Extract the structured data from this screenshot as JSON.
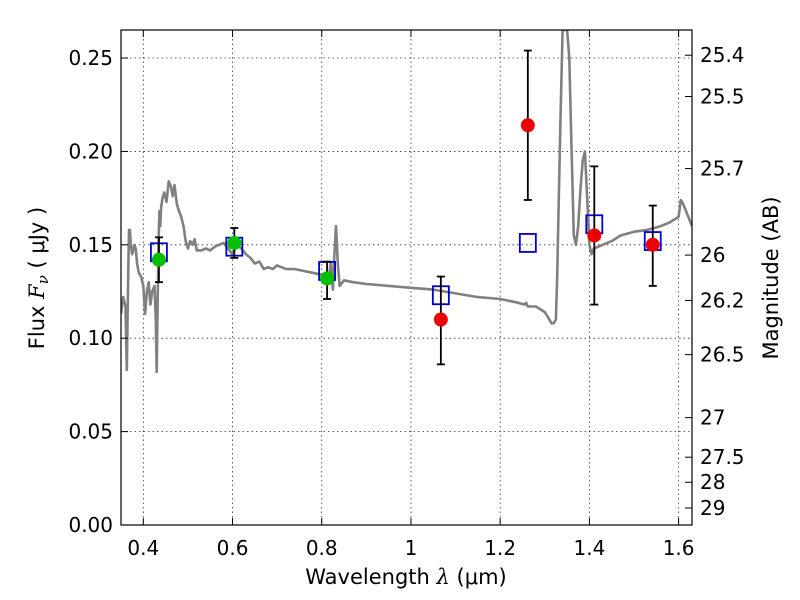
{
  "chart_data": {
    "type": "scatter",
    "title": "",
    "xlabel": "Wavelength",
    "xlabel_symbol": "λ",
    "xlabel_unit": "(μm)",
    "ylabel": "Flux",
    "ylabel_symbol": "F",
    "ylabel_subscript": "ν",
    "ylabel_unit": "( μJy )",
    "y2label": "Magnitude (AB)",
    "xlim": [
      0.35,
      1.63
    ],
    "ylim": [
      0,
      0.265
    ],
    "grid": true,
    "x_ticks": [
      0.4,
      0.6,
      0.8,
      1.0,
      1.2,
      1.4,
      1.6
    ],
    "x_tick_labels": [
      "0.4",
      "0.6",
      "0.8",
      "1",
      "1.2",
      "1.4",
      "1.6"
    ],
    "y_ticks": [
      0,
      0.05,
      0.1,
      0.15,
      0.2,
      0.25
    ],
    "y_tick_labels": [
      "0.00",
      "0.05",
      "0.10",
      "0.15",
      "0.20",
      "0.25"
    ],
    "y2_ticks": [
      {
        "label": "25.4",
        "flux": 0.2515
      },
      {
        "label": "25.5",
        "flux": 0.2294
      },
      {
        "label": "25.7",
        "flux": 0.1908
      },
      {
        "label": "26",
        "flux": 0.1445
      },
      {
        "label": "26.2",
        "flux": 0.1202
      },
      {
        "label": "26.5",
        "flux": 0.0912
      },
      {
        "label": "27",
        "flux": 0.0575
      },
      {
        "label": "27.5",
        "flux": 0.0363
      },
      {
        "label": "28",
        "flux": 0.0229
      },
      {
        "label": "29",
        "flux": 0.0091
      }
    ],
    "model_spectrum": {
      "color": "#808080",
      "x": [
        0.35,
        0.355,
        0.36,
        0.363,
        0.366,
        0.368,
        0.37,
        0.372,
        0.375,
        0.378,
        0.38,
        0.383,
        0.386,
        0.39,
        0.395,
        0.4,
        0.404,
        0.408,
        0.412,
        0.416,
        0.42,
        0.425,
        0.428,
        0.43,
        0.432,
        0.434,
        0.436,
        0.438,
        0.44,
        0.443,
        0.447,
        0.452,
        0.457,
        0.462,
        0.466,
        0.47,
        0.475,
        0.48,
        0.485,
        0.49,
        0.495,
        0.5,
        0.505,
        0.51,
        0.515,
        0.52,
        0.53,
        0.54,
        0.55,
        0.56,
        0.57,
        0.58,
        0.59,
        0.6,
        0.61,
        0.62,
        0.63,
        0.64,
        0.65,
        0.66,
        0.67,
        0.68,
        0.69,
        0.7,
        0.72,
        0.74,
        0.76,
        0.78,
        0.8,
        0.81,
        0.815,
        0.82,
        0.825,
        0.828,
        0.832,
        0.836,
        0.84,
        0.85,
        0.87,
        0.9,
        0.95,
        1.0,
        1.05,
        1.1,
        1.15,
        1.2,
        1.24,
        1.255,
        1.258,
        1.262,
        1.268,
        1.28,
        1.3,
        1.31,
        1.315,
        1.32,
        1.325,
        1.328,
        1.33,
        1.335,
        1.34,
        1.345,
        1.35,
        1.355,
        1.36,
        1.365,
        1.37,
        1.375,
        1.38,
        1.385,
        1.39,
        1.395,
        1.4,
        1.405,
        1.41,
        1.43,
        1.45,
        1.47,
        1.5,
        1.53,
        1.56,
        1.58,
        1.6,
        1.605,
        1.61,
        1.62,
        1.63
      ],
      "y": [
        0.113,
        0.122,
        0.117,
        0.083,
        0.13,
        0.158,
        0.158,
        0.15,
        0.145,
        0.148,
        0.15,
        0.148,
        0.14,
        0.135,
        0.133,
        0.128,
        0.113,
        0.125,
        0.13,
        0.118,
        0.125,
        0.128,
        0.11,
        0.082,
        0.118,
        0.15,
        0.168,
        0.16,
        0.17,
        0.175,
        0.178,
        0.173,
        0.184,
        0.181,
        0.176,
        0.182,
        0.172,
        0.168,
        0.165,
        0.16,
        0.152,
        0.148,
        0.152,
        0.15,
        0.153,
        0.147,
        0.147,
        0.148,
        0.147,
        0.149,
        0.15,
        0.151,
        0.148,
        0.145,
        0.15,
        0.148,
        0.145,
        0.143,
        0.14,
        0.141,
        0.137,
        0.138,
        0.137,
        0.139,
        0.137,
        0.137,
        0.136,
        0.135,
        0.134,
        0.132,
        0.13,
        0.14,
        0.126,
        0.143,
        0.16,
        0.14,
        0.128,
        0.131,
        0.13,
        0.129,
        0.128,
        0.127,
        0.126,
        0.124,
        0.122,
        0.121,
        0.119,
        0.118,
        0.119,
        0.117,
        0.117,
        0.117,
        0.114,
        0.11,
        0.108,
        0.108,
        0.11,
        0.135,
        0.16,
        0.215,
        0.265,
        0.265,
        0.265,
        0.25,
        0.2,
        0.155,
        0.15,
        0.16,
        0.18,
        0.195,
        0.2,
        0.175,
        0.15,
        0.145,
        0.148,
        0.15,
        0.152,
        0.155,
        0.157,
        0.158,
        0.16,
        0.162,
        0.165,
        0.174,
        0.172,
        0.166,
        0.16
      ]
    },
    "series": [
      {
        "marker": "open-square",
        "color": "#0000cc",
        "x": [
          0.435,
          0.604,
          0.812,
          1.067,
          1.262,
          1.411,
          1.542
        ],
        "y": [
          0.146,
          0.149,
          0.136,
          0.123,
          0.151,
          0.161,
          0.152
        ]
      },
      {
        "marker": "filled-circle",
        "color": "#00c000",
        "x": [
          0.435,
          0.604,
          0.812
        ],
        "y": [
          0.142,
          0.151,
          0.132
        ],
        "yerr": [
          [
            0.13,
            0.154
          ],
          [
            0.143,
            0.159
          ],
          [
            0.121,
            0.141
          ]
        ]
      },
      {
        "marker": "filled-circle",
        "color": "#ee0000",
        "x": [
          1.067,
          1.262,
          1.411,
          1.542
        ],
        "y": [
          0.11,
          0.214,
          0.155,
          0.15
        ],
        "yerr": [
          [
            0.086,
            0.133
          ],
          [
            0.174,
            0.254
          ],
          [
            0.118,
            0.192
          ],
          [
            0.128,
            0.171
          ]
        ]
      }
    ]
  }
}
